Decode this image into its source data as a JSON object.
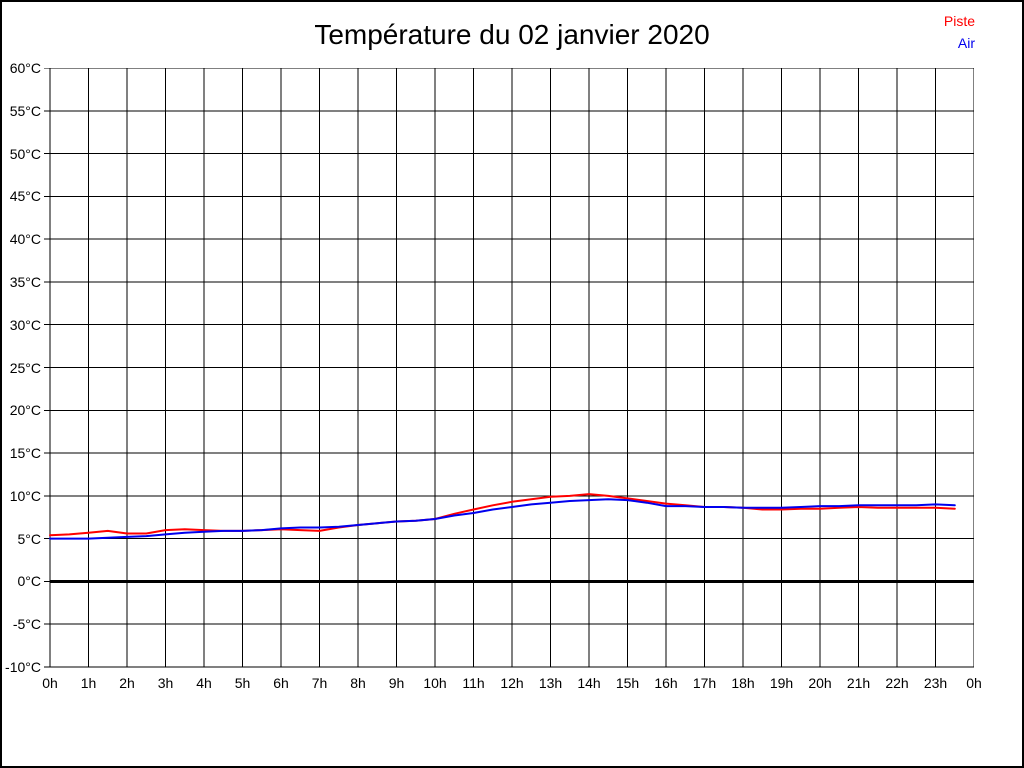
{
  "title": "Température du 02 janvier 2020",
  "legend": {
    "position": "top-right",
    "items": [
      {
        "label": "Piste",
        "color": "#ff0000"
      },
      {
        "label": "Air",
        "color": "#0000ee"
      }
    ]
  },
  "chart_data": {
    "type": "line",
    "title": "Température du 02 janvier 2020",
    "xlabel": "",
    "ylabel": "",
    "x_unit": "hour of day",
    "xlim": [
      0,
      24
    ],
    "ylim": [
      -10,
      60
    ],
    "grid": true,
    "zero_line_bold": true,
    "x_tick_step_hours": 1,
    "x_tick_labels": [
      "0h",
      "1h",
      "2h",
      "3h",
      "4h",
      "5h",
      "6h",
      "7h",
      "8h",
      "9h",
      "10h",
      "11h",
      "12h",
      "13h",
      "14h",
      "15h",
      "16h",
      "17h",
      "18h",
      "19h",
      "20h",
      "21h",
      "22h",
      "23h",
      "0h"
    ],
    "y_tick_step": 5,
    "y_tick_labels": [
      "60°C",
      "55°C",
      "50°C",
      "45°C",
      "40°C",
      "35°C",
      "30°C",
      "25°C",
      "20°C",
      "15°C",
      "10°C",
      "5°C",
      "0°C",
      "-5°C",
      "-10°C"
    ],
    "series": [
      {
        "name": "Piste",
        "color": "#ff0000",
        "x_start": 0,
        "x_step": 0.5,
        "values": [
          5.4,
          5.5,
          5.7,
          5.9,
          5.6,
          5.6,
          6.0,
          6.1,
          6.0,
          5.9,
          5.9,
          6.0,
          6.1,
          6.0,
          5.9,
          6.3,
          6.6,
          6.8,
          7.0,
          7.1,
          7.3,
          7.9,
          8.4,
          8.9,
          9.3,
          9.6,
          9.9,
          10.0,
          10.2,
          10.0,
          9.7,
          9.4,
          9.1,
          8.9,
          8.7,
          8.7,
          8.6,
          8.4,
          8.4,
          8.5,
          8.5,
          8.6,
          8.7,
          8.6,
          8.6,
          8.6,
          8.6,
          8.5
        ]
      },
      {
        "name": "Air",
        "color": "#0000ee",
        "x_start": 0,
        "x_step": 0.5,
        "values": [
          5.0,
          5.0,
          5.0,
          5.1,
          5.2,
          5.3,
          5.5,
          5.7,
          5.8,
          5.9,
          5.9,
          6.0,
          6.2,
          6.3,
          6.3,
          6.4,
          6.6,
          6.8,
          7.0,
          7.1,
          7.3,
          7.7,
          8.0,
          8.4,
          8.7,
          9.0,
          9.2,
          9.4,
          9.5,
          9.6,
          9.5,
          9.2,
          8.8,
          8.8,
          8.7,
          8.7,
          8.6,
          8.6,
          8.6,
          8.7,
          8.8,
          8.8,
          8.9,
          8.9,
          8.9,
          8.9,
          9.0,
          8.9
        ]
      }
    ]
  }
}
